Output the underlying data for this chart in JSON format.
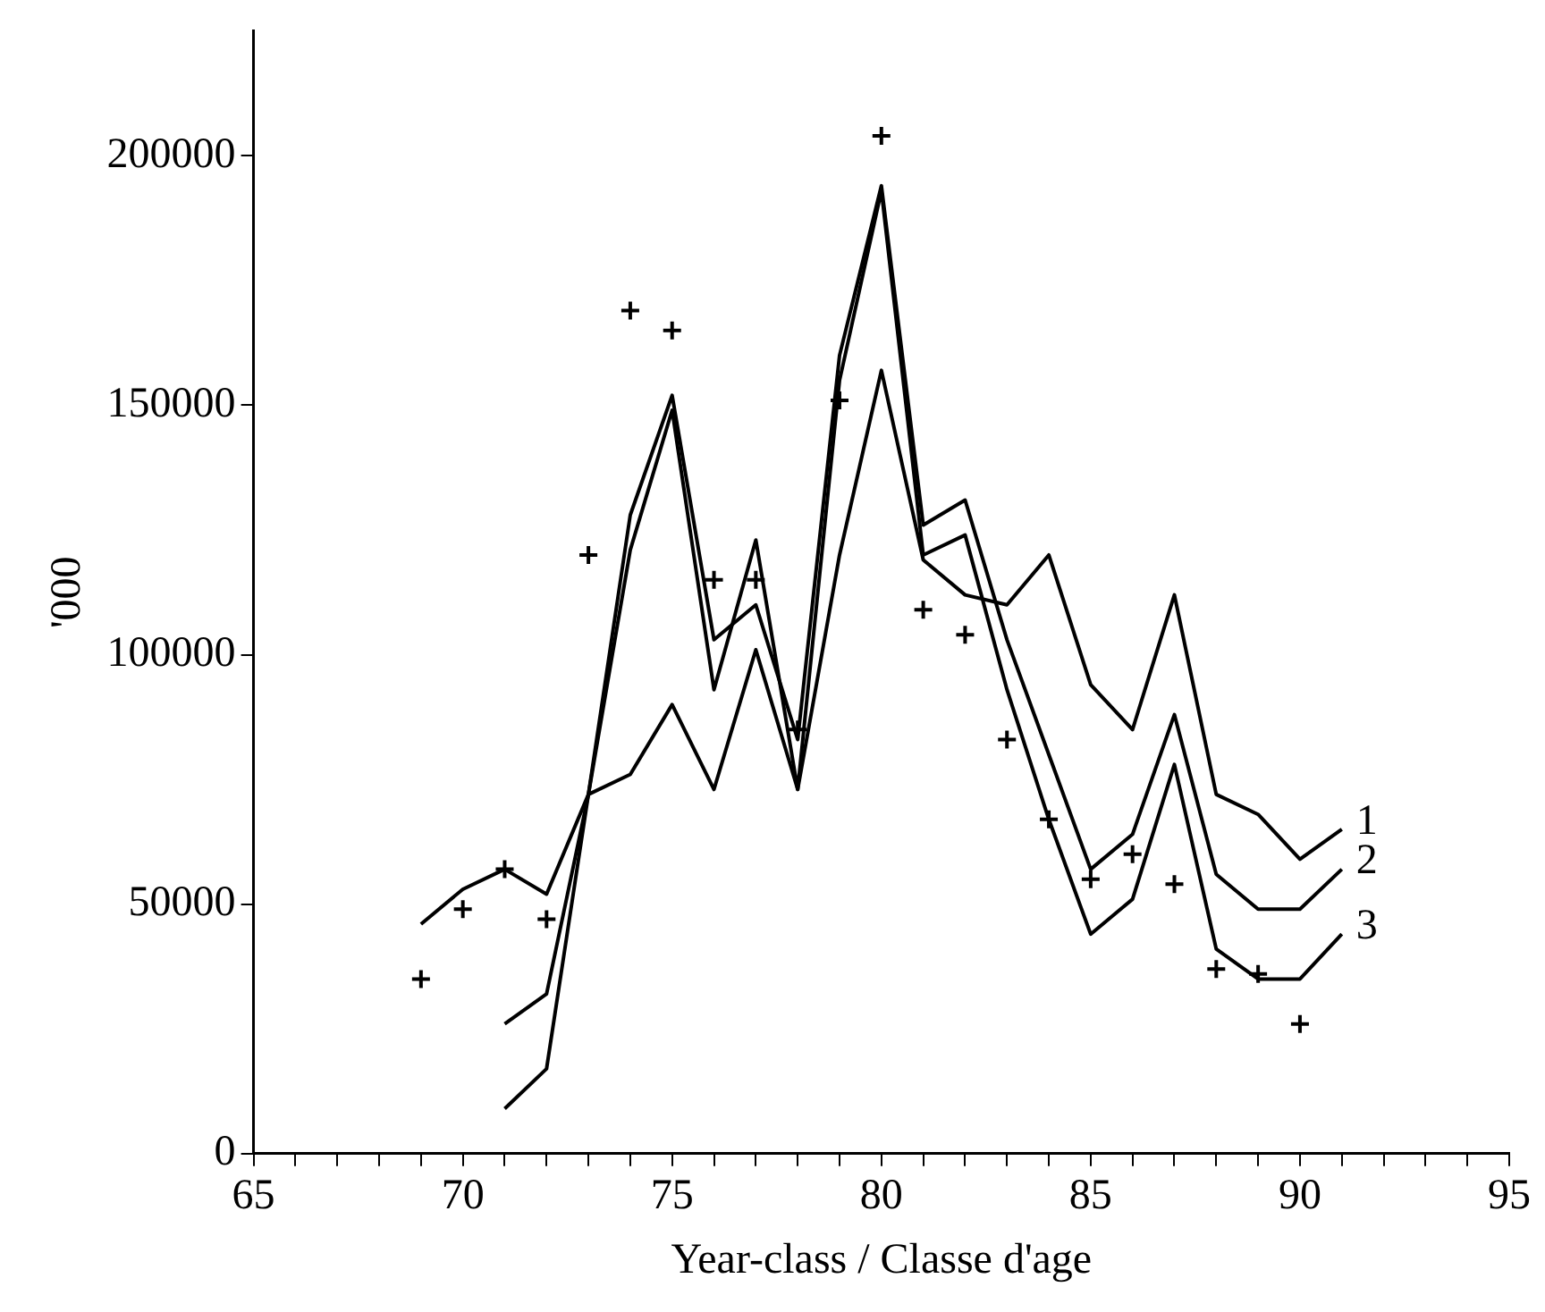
{
  "chart_data": {
    "type": "line",
    "xlabel": "Year-class / Classe d'age",
    "ylabel": "'000",
    "xlim": [
      65,
      95
    ],
    "xticks": [
      65,
      {
        "value": 66,
        "label": null
      },
      {
        "value": 67,
        "label": null
      },
      {
        "value": 68,
        "label": null
      },
      {
        "value": 69,
        "label": null
      },
      70,
      {
        "value": 71,
        "label": null
      },
      {
        "value": 72,
        "label": null
      },
      {
        "value": 73,
        "label": null
      },
      {
        "value": 74,
        "label": null
      },
      75,
      {
        "value": 76,
        "label": null
      },
      {
        "value": 77,
        "label": null
      },
      {
        "value": 78,
        "label": null
      },
      {
        "value": 79,
        "label": null
      },
      80,
      {
        "value": 81,
        "label": null
      },
      {
        "value": 82,
        "label": null
      },
      {
        "value": 83,
        "label": null
      },
      {
        "value": 84,
        "label": null
      },
      85,
      {
        "value": 86,
        "label": null
      },
      {
        "value": 87,
        "label": null
      },
      {
        "value": 88,
        "label": null
      },
      {
        "value": 89,
        "label": null
      },
      90,
      {
        "value": 91,
        "label": null
      },
      {
        "value": 92,
        "label": null
      },
      {
        "value": 93,
        "label": null
      },
      {
        "value": 94,
        "label": null
      },
      95
    ],
    "ylim": [
      0,
      225000
    ],
    "yticks": [
      0,
      50000,
      100000,
      150000,
      200000
    ],
    "grid": false,
    "legend": false,
    "line_style": "solid",
    "series": [
      {
        "name": "1",
        "color": "#000000",
        "x": [
          69,
          70,
          71,
          72,
          73,
          74,
          75,
          76,
          77,
          78,
          79,
          80,
          81,
          82,
          83,
          84,
          85,
          86,
          87,
          88,
          89,
          90,
          91
        ],
        "values": [
          46000,
          53000,
          57000,
          52000,
          72000,
          76000,
          90000,
          73000,
          101000,
          73000,
          120000,
          157000,
          119000,
          112000,
          110000,
          120000,
          94000,
          85000,
          112000,
          72000,
          68000,
          59000,
          65000
        ]
      },
      {
        "name": "2",
        "color": "#000000",
        "x": [
          71,
          72,
          73,
          74,
          75,
          76,
          77,
          78,
          79,
          80,
          81,
          82,
          83,
          84,
          85,
          86,
          87,
          88,
          89,
          90,
          91
        ],
        "values": [
          26000,
          32000,
          72000,
          128000,
          152000,
          103000,
          110000,
          83000,
          160000,
          194000,
          126000,
          131000,
          103000,
          80000,
          57000,
          64000,
          88000,
          56000,
          49000,
          49000,
          57000
        ]
      },
      {
        "name": "3",
        "color": "#000000",
        "x": [
          71,
          72,
          73,
          74,
          75,
          76,
          77,
          78,
          79,
          80,
          81,
          82,
          83,
          84,
          85,
          86,
          87,
          88,
          89,
          90,
          91
        ],
        "values": [
          9000,
          17000,
          72000,
          121000,
          149000,
          93000,
          123000,
          73000,
          155000,
          193000,
          120000,
          124000,
          93000,
          67000,
          44000,
          51000,
          78000,
          41000,
          35000,
          35000,
          44000
        ]
      },
      {
        "type": "scatter",
        "marker": "cross",
        "color": "#000000",
        "x": [
          69,
          70,
          71,
          72,
          73,
          74,
          75,
          76,
          77,
          78,
          79,
          80,
          81,
          82,
          83,
          84,
          85,
          86,
          87,
          88,
          89,
          90
        ],
        "values": [
          35000,
          49000,
          57000,
          47000,
          120000,
          169000,
          165000,
          115000,
          115000,
          85000,
          151000,
          204000,
          109000,
          104000,
          83000,
          67000,
          55000,
          60000,
          54000,
          37000,
          36000,
          26000
        ]
      }
    ]
  }
}
